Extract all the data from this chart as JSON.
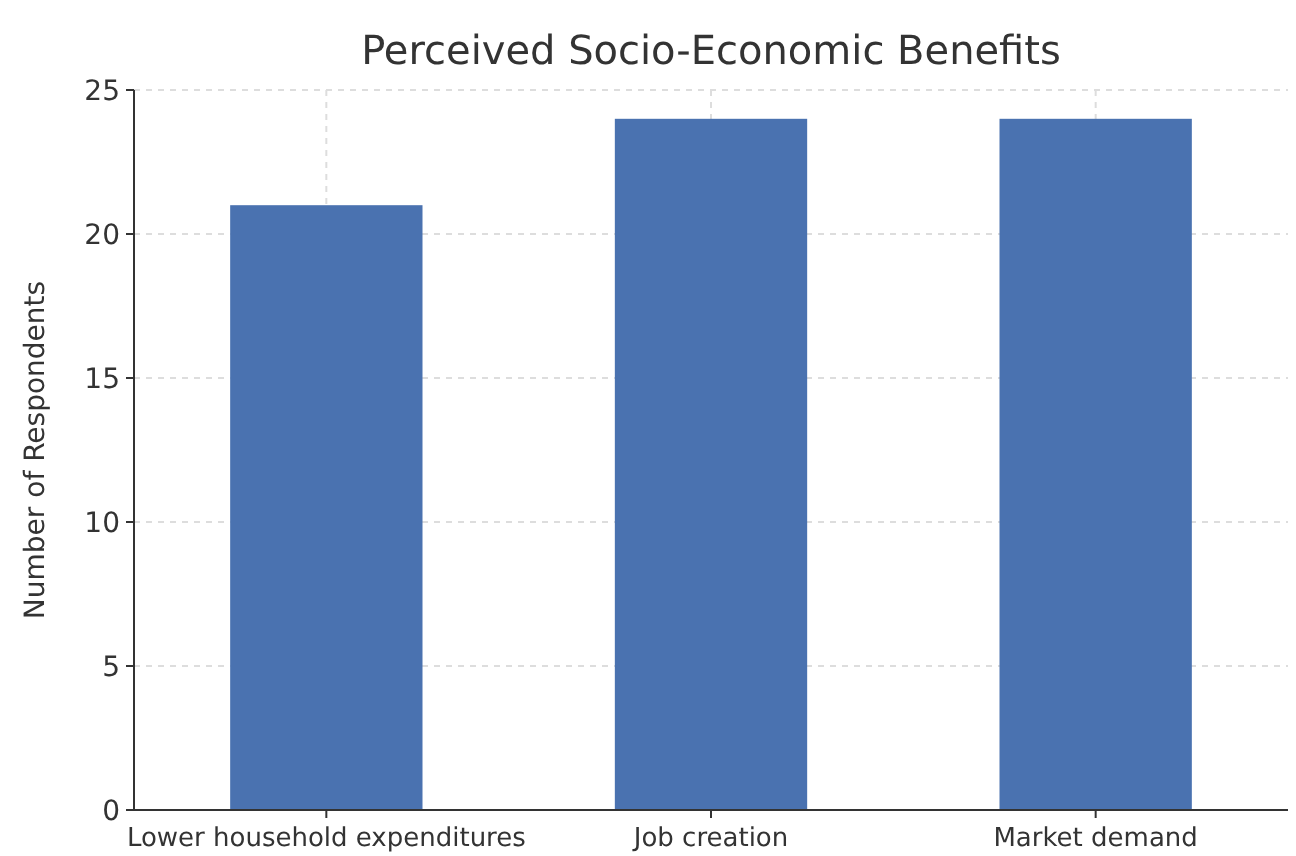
{
  "chart_data": {
    "type": "bar",
    "title": "Perceived Socio-Economic Benefits",
    "ylabel": "Number of Respondents",
    "categories": [
      "Lower household expenditures",
      "Job creation",
      "Market demand"
    ],
    "values": [
      21,
      24,
      24
    ],
    "color": "#4a72b0",
    "ylim": [
      0,
      25
    ],
    "yticks": [
      0,
      5,
      10,
      15,
      20,
      25
    ],
    "grid": true
  }
}
